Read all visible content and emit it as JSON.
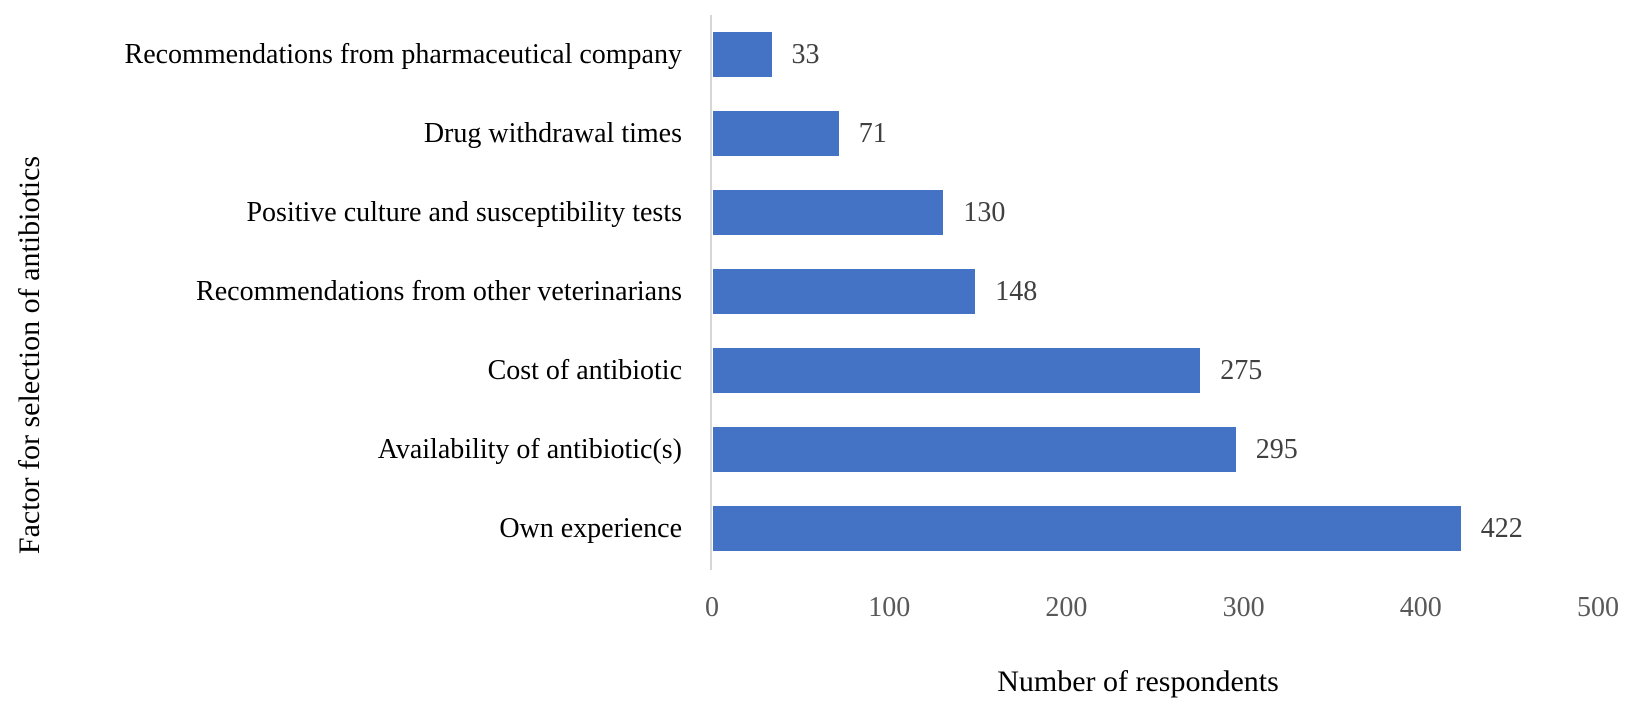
{
  "chart_data": {
    "type": "bar",
    "orientation": "horizontal",
    "title": "",
    "xlabel": "Number of respondents",
    "ylabel": "Factor for selection of antibiotics",
    "categories": [
      "Recommendations from pharmaceutical company",
      "Drug withdrawal times",
      "Positive culture and susceptibility tests",
      "Recommendations from other veterinarians",
      "Cost of antibiotic",
      "Availability of antibiotic(s)",
      "Own experience"
    ],
    "values": [
      33,
      71,
      130,
      148,
      275,
      295,
      422
    ],
    "data_labels": [
      "33",
      "71",
      "130",
      "148",
      "275",
      "295",
      "422"
    ],
    "xlim": [
      0,
      500
    ],
    "xticks": [
      "0",
      "100",
      "200",
      "300",
      "400",
      "500"
    ],
    "grid": false,
    "legend_position": "none",
    "colors": {
      "bar": "#4472C4",
      "axis_line": "#D6D6D6",
      "tick_label": "#595959",
      "value_label": "#404040",
      "category_label": "#000000",
      "axis_title": "#000000",
      "background": "#FFFFFF"
    }
  }
}
